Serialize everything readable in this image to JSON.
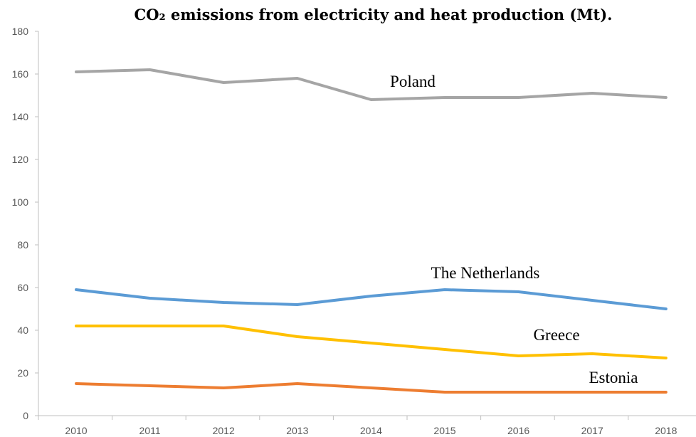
{
  "chart_data": {
    "type": "line",
    "title": "CO₂ emissions from electricity and heat production (Mt).",
    "xlabel": "",
    "ylabel": "",
    "x": [
      "2010",
      "2011",
      "2012",
      "2013",
      "2014",
      "2015",
      "2016",
      "2017",
      "2018"
    ],
    "ylim": [
      0,
      180
    ],
    "yticks": [
      "0",
      "20",
      "40",
      "60",
      "80",
      "100",
      "120",
      "140",
      "160",
      "180"
    ],
    "grid": false,
    "legend": "none (series labeled directly on lines)",
    "series": [
      {
        "name": "Poland",
        "color": "#a5a5a5",
        "values": [
          161,
          162,
          156,
          158,
          148,
          149,
          149,
          151,
          149
        ]
      },
      {
        "name": "The Netherlands",
        "color": "#5b9bd5",
        "values": [
          59,
          55,
          53,
          52,
          56,
          59,
          58,
          54,
          50
        ]
      },
      {
        "name": "Greece",
        "color": "#ffc000",
        "values": [
          42,
          42,
          42,
          37,
          34,
          31,
          28,
          29,
          27
        ]
      },
      {
        "name": "Estonia",
        "color": "#ed7d31",
        "values": [
          15,
          14,
          13,
          15,
          13,
          11,
          11,
          11,
          11
        ]
      }
    ]
  }
}
